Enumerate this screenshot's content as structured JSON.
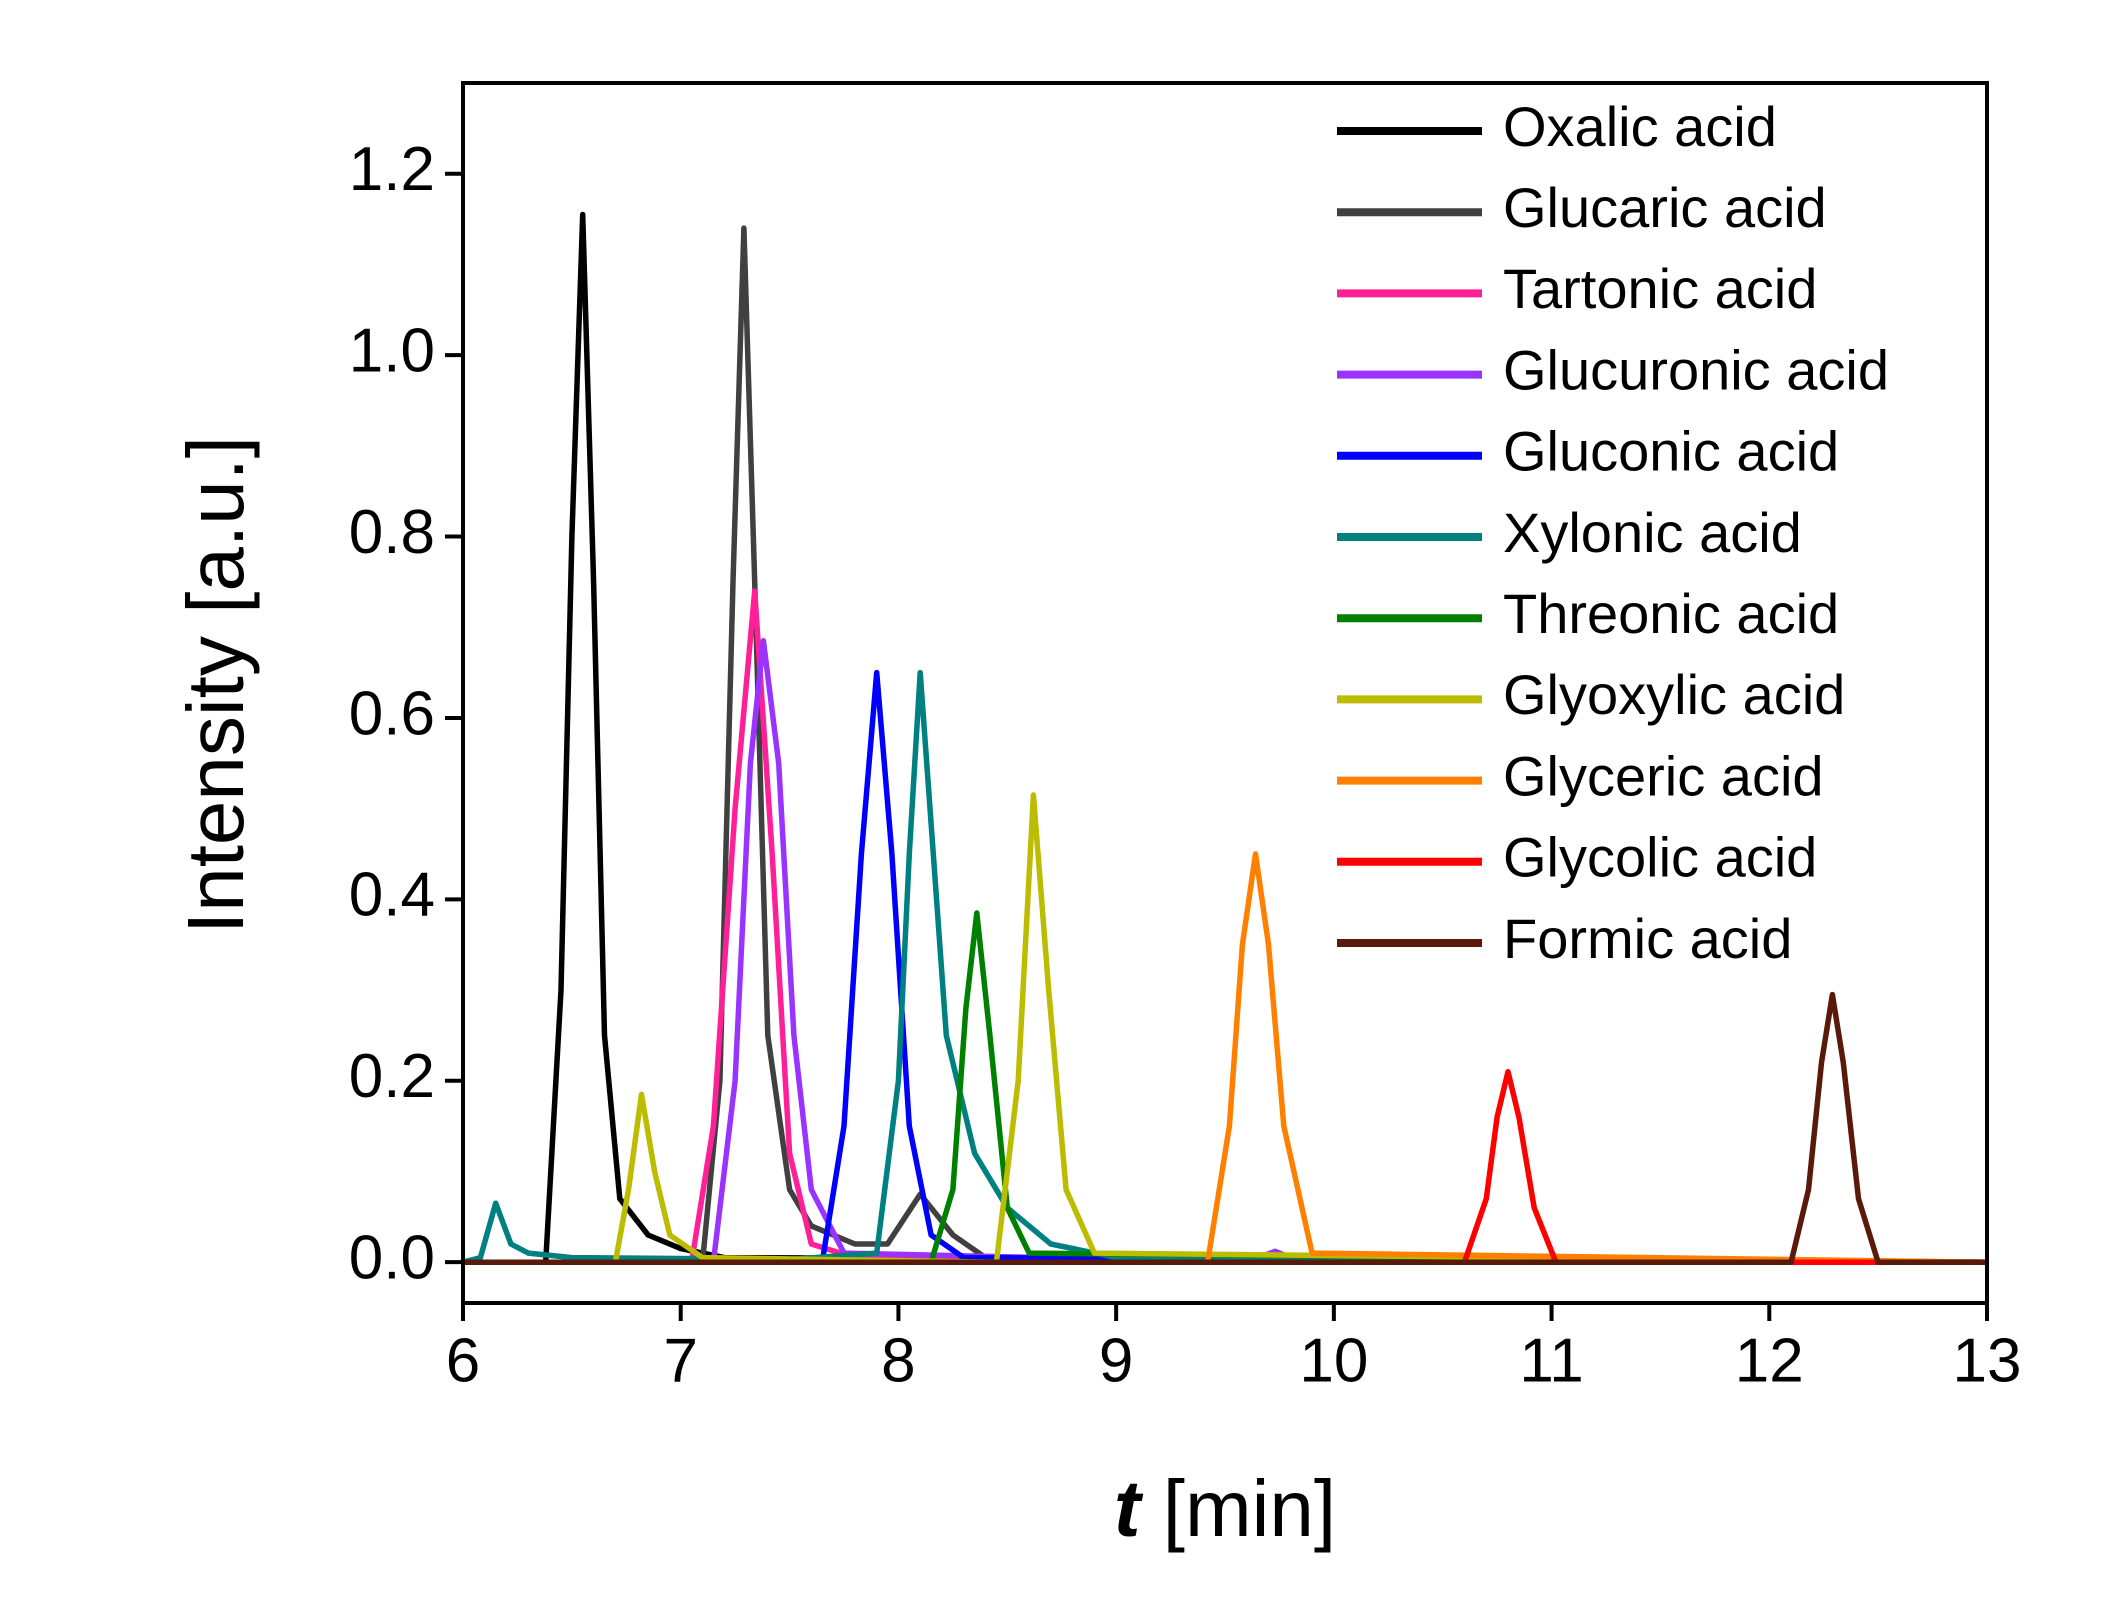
{
  "chart_data": {
    "type": "line",
    "ylabel": "Intensity [a.u.]",
    "xlabel_symbol": "t",
    "xlabel_unit": "[min]",
    "xlim": [
      6,
      13
    ],
    "xticks": [
      6,
      7,
      8,
      9,
      10,
      11,
      12,
      13
    ],
    "ylim": [
      -0.045,
      1.3
    ],
    "yticks": [
      {
        "value": 0,
        "label": "0.0"
      },
      0.2,
      0.4,
      0.6,
      0.8,
      {
        "value": 1,
        "label": "1.0"
      },
      1.2
    ],
    "legend": "upper right",
    "series": [
      {
        "name": "Oxalic acid",
        "color": "#000000",
        "x": [
          6,
          6.38,
          6.45,
          6.5,
          6.55,
          6.6,
          6.65,
          6.72,
          6.85,
          7.0,
          7.2,
          13
        ],
        "values": [
          0,
          0,
          0.3,
          0.8,
          1.155,
          0.75,
          0.25,
          0.07,
          0.03,
          0.015,
          0.005,
          0
        ]
      },
      {
        "name": "Glucaric acid",
        "color": "#404040",
        "x": [
          6,
          7.1,
          7.18,
          7.24,
          7.29,
          7.34,
          7.4,
          7.5,
          7.6,
          7.8,
          7.95,
          8.1,
          8.25,
          8.4,
          13
        ],
        "values": [
          0,
          0,
          0.2,
          0.75,
          1.14,
          0.75,
          0.25,
          0.08,
          0.04,
          0.02,
          0.02,
          0.075,
          0.03,
          0.005,
          0
        ]
      },
      {
        "name": "Tartonic acid",
        "color": "#ff1f96",
        "x": [
          6,
          7.05,
          7.15,
          7.25,
          7.34,
          7.42,
          7.5,
          7.6,
          7.8,
          13
        ],
        "values": [
          0,
          0,
          0.15,
          0.5,
          0.74,
          0.45,
          0.12,
          0.02,
          0.005,
          0
        ]
      },
      {
        "name": "Glucuronic acid",
        "color": "#9933ff",
        "x": [
          6,
          7.15,
          7.25,
          7.32,
          7.38,
          7.45,
          7.52,
          7.6,
          7.75,
          9.6,
          9.73,
          9.85,
          13
        ],
        "values": [
          0,
          0,
          0.2,
          0.55,
          0.685,
          0.55,
          0.25,
          0.08,
          0.01,
          0,
          0.012,
          0,
          0
        ]
      },
      {
        "name": "Gluconic acid",
        "color": "#0000ff",
        "x": [
          6,
          7.65,
          7.75,
          7.83,
          7.9,
          7.97,
          8.05,
          8.15,
          8.3,
          13
        ],
        "values": [
          0,
          0,
          0.15,
          0.45,
          0.65,
          0.45,
          0.15,
          0.03,
          0.005,
          0
        ]
      },
      {
        "name": "Xylonic acid",
        "color": "#008080",
        "x": [
          6,
          6.08,
          6.15,
          6.22,
          6.3,
          6.5,
          7.5,
          7.9,
          8.0,
          8.05,
          8.1,
          8.16,
          8.22,
          8.35,
          8.5,
          8.7,
          9.0,
          13
        ],
        "values": [
          0,
          0.005,
          0.065,
          0.02,
          0.01,
          0.005,
          0.003,
          0.01,
          0.2,
          0.45,
          0.65,
          0.45,
          0.25,
          0.12,
          0.06,
          0.02,
          0.005,
          0
        ]
      },
      {
        "name": "Threonic acid",
        "color": "#008000",
        "x": [
          6,
          8.15,
          8.25,
          8.31,
          8.36,
          8.42,
          8.5,
          8.6,
          13
        ],
        "values": [
          0,
          0,
          0.08,
          0.28,
          0.385,
          0.25,
          0.06,
          0.01,
          0
        ]
      },
      {
        "name": "Glyoxylic acid",
        "color": "#bcbc00",
        "x": [
          6,
          6.7,
          6.76,
          6.82,
          6.88,
          6.95,
          7.1,
          8.45,
          8.55,
          8.62,
          8.69,
          8.77,
          8.9,
          13
        ],
        "values": [
          0,
          0,
          0.08,
          0.185,
          0.1,
          0.03,
          0.005,
          0,
          0.2,
          0.515,
          0.3,
          0.08,
          0.01,
          0
        ]
      },
      {
        "name": "Glyceric acid",
        "color": "#ff8000",
        "x": [
          6,
          9.42,
          9.52,
          9.58,
          9.64,
          9.7,
          9.77,
          9.9,
          13
        ],
        "values": [
          0,
          0,
          0.15,
          0.35,
          0.45,
          0.35,
          0.15,
          0.01,
          0
        ]
      },
      {
        "name": "Glycolic acid",
        "color": "#ff0000",
        "x": [
          6,
          10.6,
          10.7,
          10.75,
          10.8,
          10.85,
          10.92,
          11.02,
          13
        ],
        "values": [
          0,
          0,
          0.07,
          0.16,
          0.21,
          0.16,
          0.06,
          0,
          0
        ]
      },
      {
        "name": "Formic acid",
        "color": "#5a1a0a",
        "x": [
          6,
          12.1,
          12.18,
          12.24,
          12.29,
          12.34,
          12.41,
          12.5,
          13
        ],
        "values": [
          0,
          0,
          0.08,
          0.22,
          0.295,
          0.22,
          0.07,
          0,
          0
        ]
      }
    ]
  }
}
